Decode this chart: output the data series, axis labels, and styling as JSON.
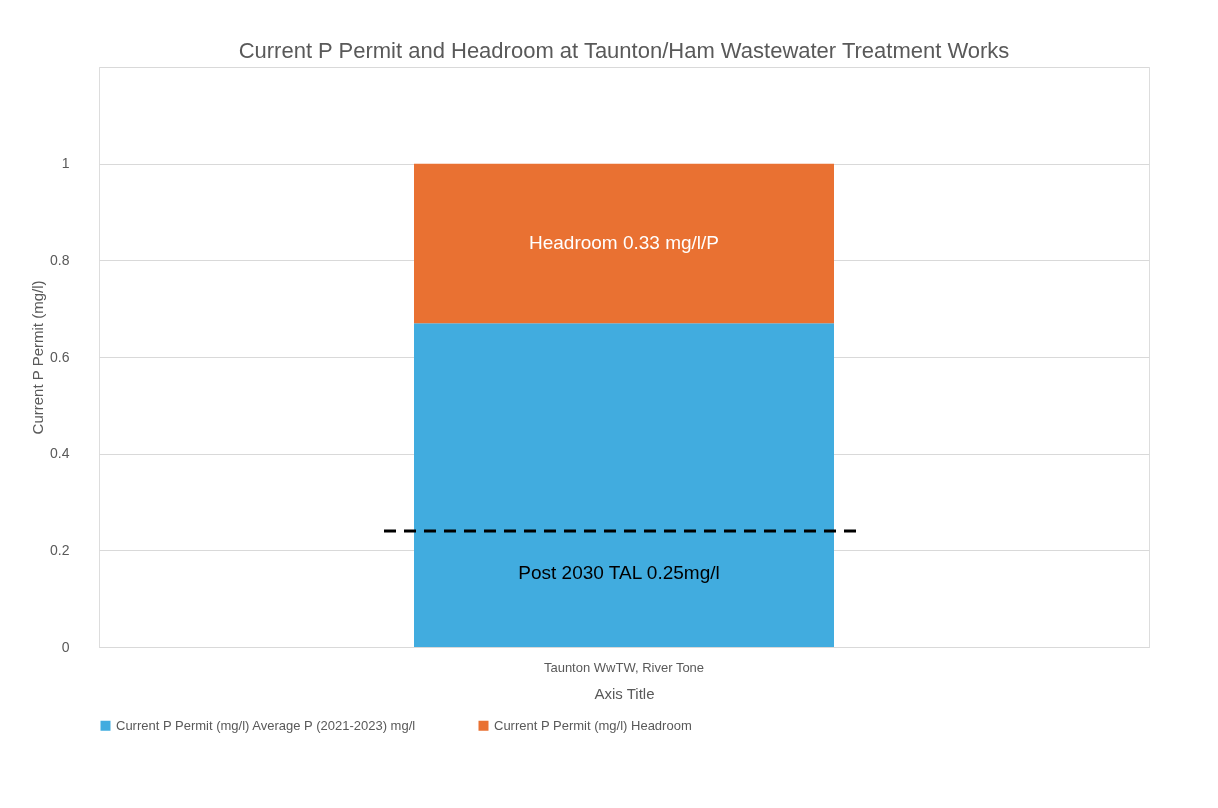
{
  "chart_data": {
    "type": "bar",
    "title": "Current P Permit and Headroom at Taunton/Ham Wastewater Treatment Works",
    "xlabel": "Axis Title",
    "ylabel": "Current P Permit (mg/l)",
    "categories": [
      "Taunton WwTW, River Tone"
    ],
    "stacked": true,
    "series": [
      {
        "name": "Current P Permit (mg/l) Average P (2021-2023) mg/l",
        "color": "#41acdf",
        "values": [
          0.67
        ]
      },
      {
        "name": "Current P Permit (mg/l) Headroom",
        "color": "#e97132",
        "values": [
          0.33
        ],
        "value_labels": [
          "Headroom 0.33 mg/l/P"
        ]
      }
    ],
    "ylim": [
      0,
      1.2
    ],
    "yticks": [
      0,
      0.2,
      0.4,
      0.6,
      0.8,
      1,
      {
        "value": 1.2,
        "label": null
      }
    ],
    "ref_lines": [
      {
        "axis": "y",
        "value": 0.24,
        "label": "Post 2030 TAL 0.25mg/l",
        "color": "#000000",
        "line_style": "dashed"
      }
    ],
    "grid": "y",
    "legend": "bottom"
  }
}
